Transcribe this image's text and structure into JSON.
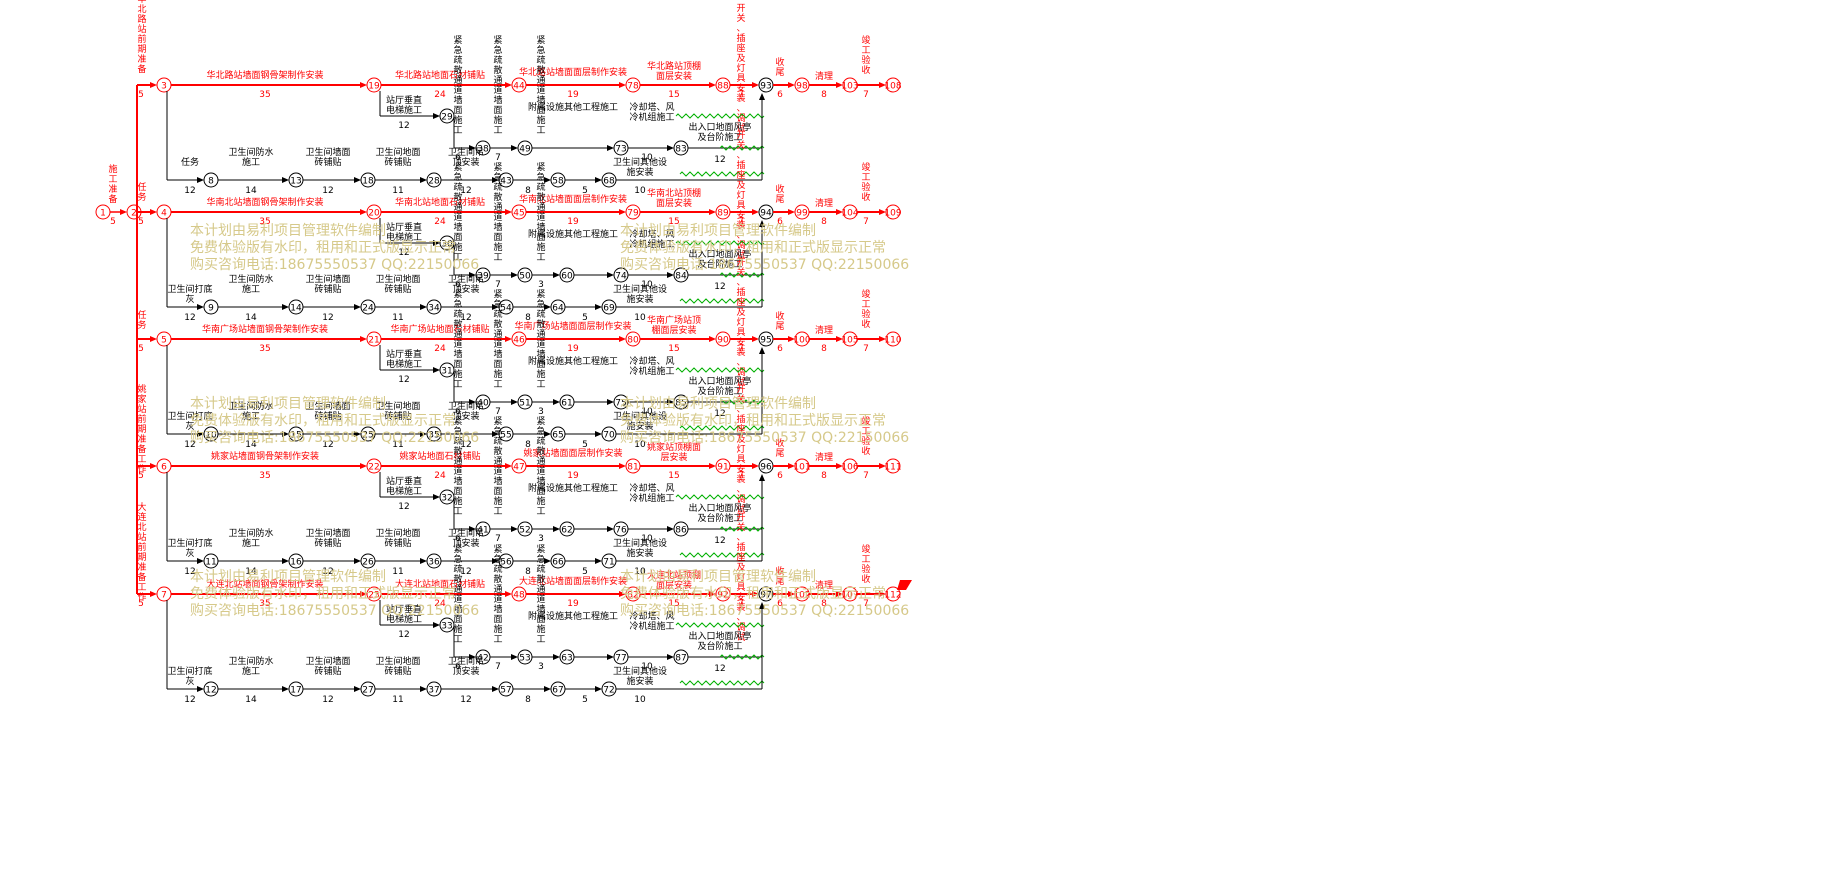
{
  "colors": {
    "critical": "#ff0000",
    "normal": "#000000",
    "dummy": "#00b000",
    "watermark": "#d6c98a"
  },
  "watermark_lines": [
    "本计划由易利项目管理软件编制",
    "免费体验版有水印，租用和正式版显示正常",
    "购买咨询电话:18675550537 QQ:22150066"
  ],
  "left_vertical_labels": [
    "华北路站前期准备",
    "任务",
    "任务",
    "姚家站前期准备工作",
    "大连北站前期准备工作"
  ],
  "start": {
    "label": "施工准备",
    "duration": "5"
  },
  "stations": [
    {
      "main_task": "华北路站墙面钢骨架制作安装",
      "floor_task": "华北路站地面石材铺贴",
      "ceiling_task": "华北路站墙面面层制作安装",
      "roof_task": "华北路站顶棚面层安装",
      "n": [
        "3",
        "19",
        "44",
        "78",
        "88",
        "93",
        "98",
        "103",
        "108"
      ],
      "m": [
        "29",
        "38",
        "49",
        "73",
        "83"
      ],
      "w": [
        "8",
        "13",
        "18",
        "28",
        "43",
        "58",
        "68"
      ],
      "first_wet": "任务"
    },
    {
      "main_task": "华南北站墙面钢骨架制作安装",
      "floor_task": "华南北站地面石材铺贴",
      "ceiling_task": "华南北站墙面面层制作安装",
      "roof_task": "华南北站顶棚面层安装",
      "n": [
        "4",
        "20",
        "45",
        "79",
        "89",
        "94",
        "99",
        "104",
        "109"
      ],
      "m": [
        "30",
        "39",
        "50",
        "60",
        "74",
        "84"
      ],
      "w": [
        "9",
        "14",
        "24",
        "34",
        "54",
        "64",
        "69"
      ],
      "first_wet": "卫生间打底灰"
    },
    {
      "main_task": "华南广场站墙面钢骨架制作安装",
      "floor_task": "华南广场站地面石材铺贴",
      "ceiling_task": "华南广场站墙面面层制作安装",
      "roof_task": "华南广场站顶棚面层安装",
      "n": [
        "5",
        "21",
        "46",
        "80",
        "90",
        "95",
        "100",
        "105",
        "110"
      ],
      "m": [
        "31",
        "40",
        "51",
        "61",
        "75",
        "85"
      ],
      "w": [
        "10",
        "15",
        "25",
        "35",
        "55",
        "65",
        "70"
      ],
      "first_wet": "卫生间打底灰"
    },
    {
      "main_task": "姚家站墙面钢骨架制作安装",
      "floor_task": "姚家站地面石材铺贴",
      "ceiling_task": "姚家站墙面面层制作安装",
      "roof_task": "姚家站顶棚面层安装",
      "n": [
        "6",
        "22",
        "47",
        "81",
        "91",
        "96",
        "101",
        "106",
        "111"
      ],
      "m": [
        "32",
        "41",
        "52",
        "62",
        "76",
        "86"
      ],
      "w": [
        "11",
        "16",
        "26",
        "36",
        "56",
        "66",
        "71"
      ],
      "first_wet": "卫生间打底灰"
    },
    {
      "main_task": "大连北站墙面钢骨架制作安装",
      "floor_task": "大连北站地面石材铺贴",
      "ceiling_task": "大连北站墙面面层制作安装",
      "roof_task": "大连北站顶棚面层安装",
      "n": [
        "7",
        "23",
        "48",
        "82",
        "92",
        "97",
        "102",
        "107",
        "112"
      ],
      "m": [
        "33",
        "42",
        "53",
        "63",
        "77",
        "87"
      ],
      "w": [
        "12",
        "17",
        "27",
        "37",
        "57",
        "67",
        "72"
      ],
      "first_wet": "卫生间打底灰"
    }
  ],
  "common_labels": {
    "elevator": "站厅垂直电梯施工",
    "cooling": "冷却塔、风冷机组施工",
    "exit": "出入口地面风亭及台阶施工",
    "waterproof": "卫生间防水施工",
    "wall_tile": "卫生间墙面砖铺贴",
    "floor_tile": "卫生间地面砖铺贴",
    "ceiling_hang": "卫生间吊顶安装",
    "lamp": "灯具安装",
    "other_fac": "卫生间其他设施安装",
    "attached": "附属设施其他工程施工",
    "switch": "开关、插座及灯具安装、调试",
    "close": "收尾",
    "clean": "清理",
    "accept": "竣工验收",
    "emergency": "紧急疏散通道墙面施工"
  },
  "durations": {
    "main": "35",
    "floor": "24",
    "ceiling": "19",
    "roof": "15",
    "switch": "7",
    "close": "6",
    "clean": "8",
    "accept": "7",
    "elevator": "12",
    "wet": [
      "12",
      "14",
      "12",
      "11",
      "12",
      "8",
      "5",
      "10"
    ],
    "cooling": "10",
    "exit": "12",
    "m1": "6",
    "m2": "7",
    "m3": "3"
  }
}
